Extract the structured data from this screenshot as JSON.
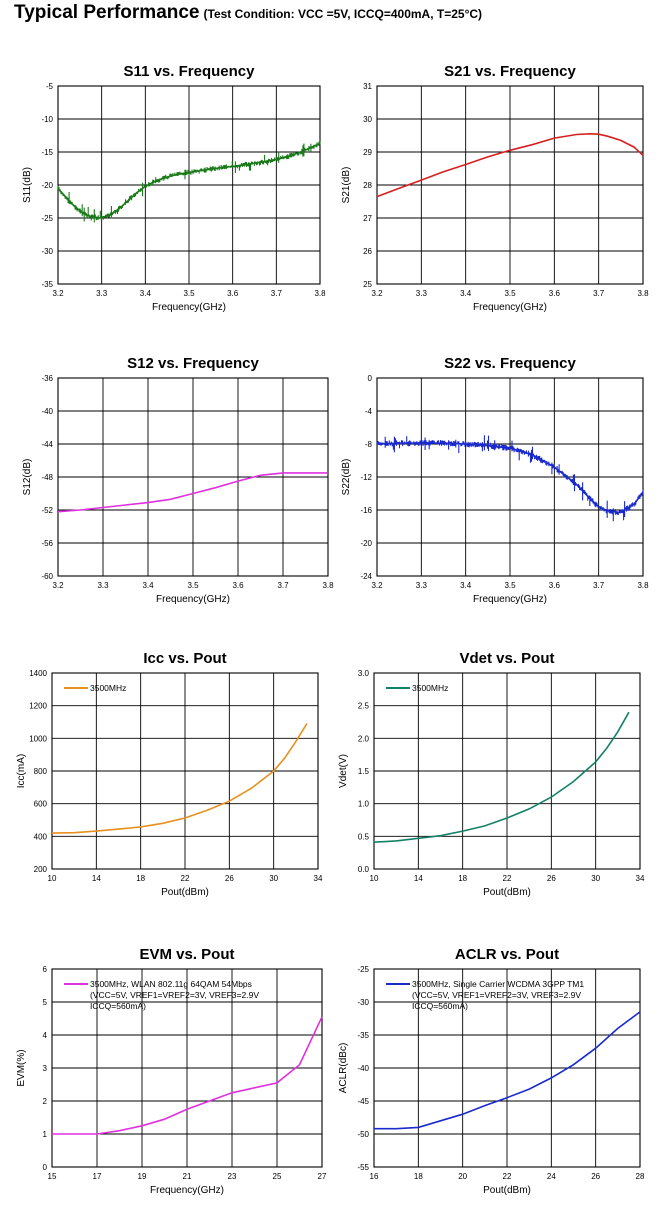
{
  "page": {
    "title": "Typical Performance",
    "condition": "(Test Condition: VCC =5V, ICCQ=400mA, T=25°C)"
  },
  "chart_data": [
    {
      "id": "s11",
      "type": "line",
      "title": "S11 vs. Frequency",
      "xlabel": "Frequency(GHz)",
      "ylabel": "S11(dB)",
      "xlim": [
        3.2,
        3.8
      ],
      "ylim": [
        -35,
        -5
      ],
      "xticks": [
        "3.2",
        "3.3",
        "3.4",
        "3.5",
        "3.6",
        "3.7",
        "3.8"
      ],
      "yticks": [
        "-35",
        "-30",
        "-25",
        "-20",
        "-15",
        "-10",
        "-5"
      ],
      "grid": true,
      "legend": null,
      "series": [
        {
          "color": "#1a7a1a",
          "noise": 0.6,
          "x": [
            3.2,
            3.22,
            3.24,
            3.26,
            3.28,
            3.3,
            3.32,
            3.34,
            3.36,
            3.38,
            3.4,
            3.42,
            3.44,
            3.46,
            3.48,
            3.5,
            3.52,
            3.54,
            3.56,
            3.58,
            3.6,
            3.62,
            3.64,
            3.66,
            3.68,
            3.7,
            3.72,
            3.74,
            3.76,
            3.78,
            3.8
          ],
          "y": [
            -20.5,
            -22.0,
            -23.4,
            -24.4,
            -24.9,
            -25.0,
            -24.5,
            -23.6,
            -22.4,
            -21.2,
            -20.2,
            -19.5,
            -19.0,
            -18.6,
            -18.3,
            -18.1,
            -17.9,
            -17.7,
            -17.5,
            -17.3,
            -17.2,
            -17.0,
            -16.8,
            -16.6,
            -16.4,
            -16.1,
            -15.8,
            -15.4,
            -14.9,
            -14.3,
            -13.7
          ]
        }
      ]
    },
    {
      "id": "s21",
      "type": "line",
      "title": "S21 vs. Frequency",
      "xlabel": "Frequency(GHz)",
      "ylabel": "S21(dB)",
      "xlim": [
        3.2,
        3.8
      ],
      "ylim": [
        25,
        31
      ],
      "xticks": [
        "3.2",
        "3.3",
        "3.4",
        "3.5",
        "3.6",
        "3.7",
        "3.8"
      ],
      "yticks": [
        "25",
        "26",
        "27",
        "28",
        "29",
        "30",
        "31"
      ],
      "grid": true,
      "legend": null,
      "series": [
        {
          "color": "#d62020",
          "noise": 0,
          "x": [
            3.2,
            3.25,
            3.3,
            3.35,
            3.4,
            3.45,
            3.5,
            3.55,
            3.6,
            3.65,
            3.68,
            3.7,
            3.72,
            3.75,
            3.78,
            3.8
          ],
          "y": [
            27.65,
            27.9,
            28.15,
            28.4,
            28.62,
            28.85,
            29.05,
            29.22,
            29.42,
            29.53,
            29.55,
            29.54,
            29.48,
            29.35,
            29.15,
            28.9
          ]
        }
      ]
    },
    {
      "id": "s12",
      "type": "line",
      "title": "S12 vs. Frequency",
      "xlabel": "Frequency(GHz)",
      "ylabel": "S12(dB)",
      "xlim": [
        3.2,
        3.8
      ],
      "ylim": [
        -60,
        -36
      ],
      "xticks": [
        "3.2",
        "3.3",
        "3.4",
        "3.5",
        "3.6",
        "3.7",
        "3.8"
      ],
      "yticks": [
        "-60",
        "-56",
        "-52",
        "-48",
        "-44",
        "-40",
        "-36"
      ],
      "grid": true,
      "legend": null,
      "series": [
        {
          "color": "#e030e0",
          "noise": 0,
          "x": [
            3.2,
            3.25,
            3.3,
            3.35,
            3.4,
            3.45,
            3.5,
            3.55,
            3.6,
            3.65,
            3.7,
            3.75,
            3.8
          ],
          "y": [
            -52.2,
            -52.0,
            -51.7,
            -51.4,
            -51.1,
            -50.7,
            -50.0,
            -49.3,
            -48.5,
            -47.8,
            -47.5,
            -47.5,
            -47.5
          ]
        }
      ]
    },
    {
      "id": "s22",
      "type": "line",
      "title": "S22 vs. Frequency",
      "xlabel": "Frequency(GHz)",
      "ylabel": "S22(dB)",
      "xlim": [
        3.2,
        3.8
      ],
      "ylim": [
        -24,
        0
      ],
      "xticks": [
        "3.2",
        "3.3",
        "3.4",
        "3.5",
        "3.6",
        "3.7",
        "3.8"
      ],
      "yticks": [
        "-24",
        "-20",
        "-16",
        "-12",
        "-8",
        "-4",
        "0"
      ],
      "grid": true,
      "legend": null,
      "series": [
        {
          "color": "#1a2acc",
          "noise": 0.7,
          "x": [
            3.2,
            3.25,
            3.3,
            3.35,
            3.4,
            3.45,
            3.5,
            3.55,
            3.6,
            3.65,
            3.68,
            3.7,
            3.72,
            3.75,
            3.78,
            3.8
          ],
          "y": [
            -8.0,
            -7.9,
            -7.9,
            -7.9,
            -8.0,
            -8.2,
            -8.5,
            -9.3,
            -10.8,
            -12.9,
            -14.6,
            -15.6,
            -16.1,
            -16.3,
            -15.3,
            -13.8
          ]
        }
      ]
    },
    {
      "id": "icc",
      "type": "line",
      "title": "Icc vs. Pout",
      "xlabel": "Pout(dBm)",
      "ylabel": "Icc(mA)",
      "xlim": [
        10,
        34
      ],
      "ylim": [
        200,
        1400
      ],
      "xticks": [
        "10",
        "14",
        "18",
        "22",
        "26",
        "30",
        "34"
      ],
      "yticks": [
        "200",
        "400",
        "600",
        "800",
        "1000",
        "1200",
        "1400"
      ],
      "grid": true,
      "legend": "top-left",
      "series": [
        {
          "name": "3500MHz",
          "color": "#e8901e",
          "noise": 0,
          "x": [
            10,
            12,
            14,
            16,
            18,
            20,
            22,
            24,
            26,
            28,
            30,
            31,
            32,
            33
          ],
          "y": [
            420,
            422,
            432,
            444,
            458,
            480,
            512,
            560,
            615,
            695,
            800,
            880,
            980,
            1090
          ]
        }
      ]
    },
    {
      "id": "vdet",
      "type": "line",
      "title": "Vdet vs. Pout",
      "xlabel": "Pout(dBm)",
      "ylabel": "Vdet(V)",
      "xlim": [
        10,
        34
      ],
      "ylim": [
        0,
        3.0
      ],
      "xticks": [
        "10",
        "14",
        "18",
        "22",
        "26",
        "30",
        "34"
      ],
      "yticks": [
        "0.0",
        "0.5",
        "1.0",
        "1.5",
        "2.0",
        "2.5",
        "3.0"
      ],
      "grid": true,
      "legend": "top-left",
      "series": [
        {
          "name": "3500MHz",
          "color": "#138068",
          "noise": 0,
          "x": [
            10,
            12,
            14,
            16,
            18,
            20,
            22,
            24,
            26,
            28,
            30,
            31,
            32,
            33
          ],
          "y": [
            0.41,
            0.43,
            0.47,
            0.51,
            0.58,
            0.66,
            0.78,
            0.92,
            1.1,
            1.34,
            1.64,
            1.85,
            2.1,
            2.4
          ]
        }
      ]
    },
    {
      "id": "evm",
      "type": "line",
      "title": "EVM vs. Pout",
      "xlabel": "Frequency(GHz)",
      "ylabel": "EVM(%)",
      "xlim": [
        15,
        27
      ],
      "ylim": [
        0,
        6
      ],
      "xticks": [
        "15",
        "17",
        "19",
        "21",
        "23",
        "25",
        "27"
      ],
      "yticks": [
        "0",
        "1",
        "2",
        "3",
        "4",
        "5",
        "6"
      ],
      "grid": true,
      "legend": "top-left",
      "series": [
        {
          "name": "3500MHz, WLAN 802.11g 64QAM 54Mbps",
          "name_lines": [
            "(VCC=5V, VREF1=VREF2=3V, VREF3=2.9V",
            "ICCQ=560mA)"
          ],
          "color": "#e030e0",
          "noise": 0,
          "x": [
            15,
            16,
            17,
            18,
            19,
            20,
            21,
            22,
            23,
            24,
            25,
            26,
            27
          ],
          "y": [
            1.0,
            1.0,
            1.0,
            1.1,
            1.25,
            1.45,
            1.75,
            2.0,
            2.25,
            2.4,
            2.55,
            3.1,
            4.55
          ]
        }
      ]
    },
    {
      "id": "aclr",
      "type": "line",
      "title": "ACLR vs. Pout",
      "xlabel": "Pout(dBm)",
      "ylabel": "ACLR(dBc)",
      "xlim": [
        16,
        28
      ],
      "ylim": [
        -55,
        -25
      ],
      "xticks": [
        "16",
        "18",
        "20",
        "22",
        "24",
        "26",
        "28"
      ],
      "yticks": [
        "-55",
        "-50",
        "-45",
        "-40",
        "-35",
        "-30",
        "-25"
      ],
      "grid": true,
      "legend": "top-left",
      "series": [
        {
          "name": "3500MHz, Single Carrier WCDMA 3GPP TM1",
          "name_lines": [
            "(VCC=5V, VREF1=VREF2=3V, VREF3=2.9V",
            "ICCQ=560mA)"
          ],
          "color": "#1a2acc",
          "noise": 0,
          "x": [
            16,
            17,
            18,
            19,
            20,
            21,
            22,
            23,
            24,
            25,
            26,
            27,
            28
          ],
          "y": [
            -49.2,
            -49.2,
            -49.0,
            -48.0,
            -47.0,
            -45.7,
            -44.5,
            -43.2,
            -41.5,
            -39.5,
            -37.0,
            -34.0,
            -31.5
          ]
        }
      ]
    }
  ]
}
